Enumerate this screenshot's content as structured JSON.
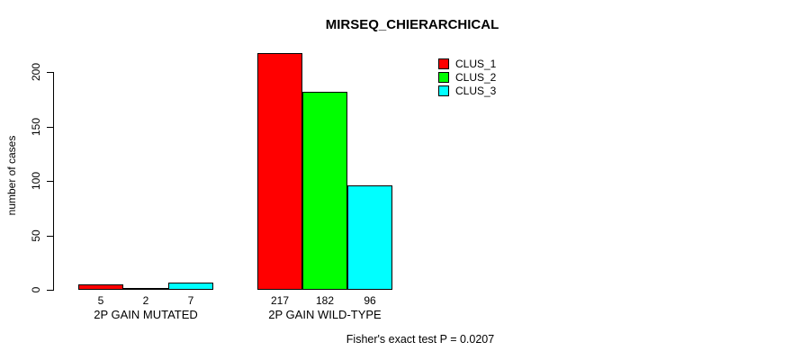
{
  "title": "MIRSEQ_CHIERARCHICAL",
  "y_axis": {
    "label": "number of cases",
    "ticks": [
      0,
      50,
      100,
      150,
      200
    ]
  },
  "legend": {
    "items": [
      {
        "label": "CLUS_1",
        "color": "#ff0000"
      },
      {
        "label": "CLUS_2",
        "color": "#00ff00"
      },
      {
        "label": "CLUS_3",
        "color": "#00ffff"
      }
    ]
  },
  "footer": "Fisher's exact test P = 0.0207",
  "chart_data": {
    "type": "bar",
    "title": "MIRSEQ_CHIERARCHICAL",
    "categories": [
      "2P GAIN MUTATED",
      "2P GAIN WILD-TYPE"
    ],
    "series": [
      {
        "name": "CLUS_1",
        "color": "#ff0000",
        "values": [
          5,
          217
        ]
      },
      {
        "name": "CLUS_2",
        "color": "#00ff00",
        "values": [
          2,
          182
        ]
      },
      {
        "name": "CLUS_3",
        "color": "#00ffff",
        "values": [
          7,
          96
        ]
      }
    ],
    "xlabel": "",
    "ylabel": "number of cases",
    "ylim": [
      0,
      200
    ],
    "yticks": [
      0,
      50,
      100,
      150,
      200
    ],
    "grid": false,
    "bar_value_labels": true,
    "legend_position": "top-right",
    "annotation": "Fisher's exact test P = 0.0207"
  }
}
